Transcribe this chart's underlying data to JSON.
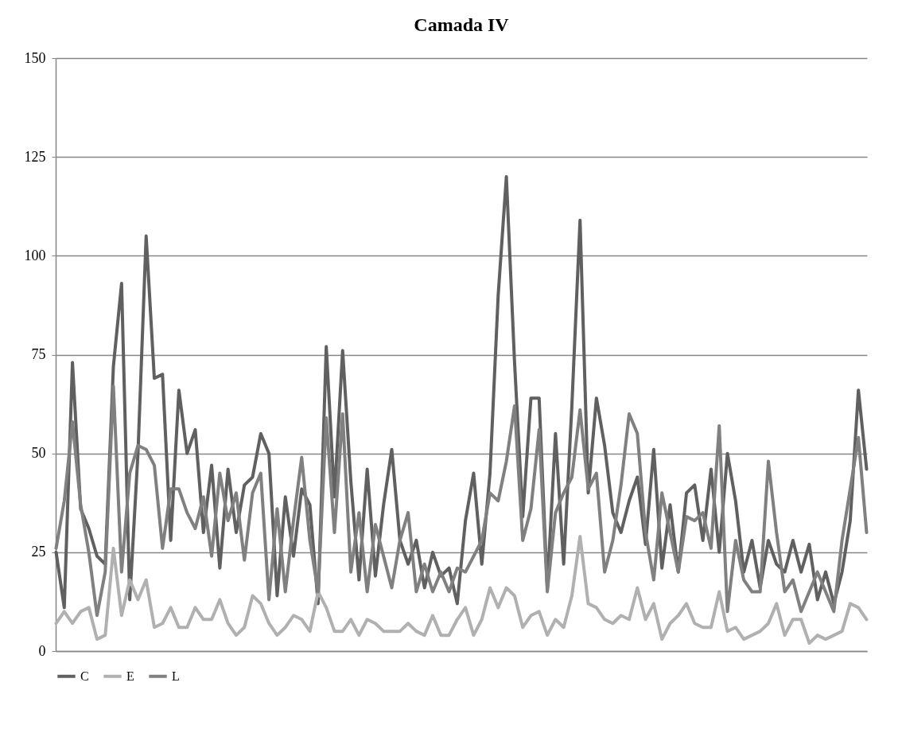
{
  "chart_data": {
    "type": "line",
    "title": "Camada IV",
    "categories": [
      null,
      null,
      null,
      null,
      null,
      null,
      null,
      null,
      null,
      null,
      null,
      null,
      null,
      null,
      null,
      null,
      null,
      null,
      null,
      null,
      null,
      null,
      null,
      null,
      null,
      null,
      null,
      null,
      null,
      null,
      null,
      null,
      null,
      null,
      null,
      null,
      null,
      null,
      null,
      null,
      null,
      null,
      null,
      null,
      null,
      null,
      null,
      null,
      null,
      null,
      null,
      null,
      null,
      null,
      null,
      null,
      null,
      null,
      null,
      null,
      null,
      null,
      null,
      null,
      null,
      null,
      null,
      null,
      null,
      null,
      null,
      null,
      null,
      null,
      null,
      null,
      null,
      null,
      null,
      null,
      null,
      null,
      null,
      null,
      null,
      null,
      null,
      null,
      null,
      null,
      null,
      null,
      null,
      null,
      null,
      null,
      null,
      null,
      null,
      null
    ],
    "series": [
      {
        "name": "C",
        "color": "#606060",
        "values": [
          25,
          11,
          73,
          36,
          31,
          24,
          22,
          72,
          93,
          13,
          50,
          105,
          69,
          70,
          28,
          66,
          50,
          56,
          30,
          47,
          21,
          46,
          30,
          42,
          44,
          55,
          50,
          14,
          39,
          24,
          41,
          37,
          12,
          77,
          39,
          76,
          43,
          18,
          46,
          19,
          37,
          51,
          28,
          22,
          28,
          16,
          25,
          19,
          21,
          12,
          33,
          45,
          22,
          45,
          90,
          120,
          73,
          34,
          64,
          64,
          16,
          55,
          22,
          62,
          109,
          40,
          64,
          52,
          35,
          30,
          38,
          44,
          27,
          51,
          21,
          37,
          20,
          40,
          42,
          28,
          46,
          25,
          50,
          38,
          20,
          28,
          16,
          28,
          22,
          20,
          28,
          20,
          27,
          13,
          20,
          12,
          20,
          33,
          66,
          46
        ]
      },
      {
        "name": "E",
        "color": "#b0b0b0",
        "values": [
          7,
          10,
          7,
          10,
          11,
          3,
          4,
          26,
          9,
          18,
          13,
          18,
          6,
          7,
          11,
          6,
          6,
          11,
          8,
          8,
          13,
          7,
          4,
          6,
          14,
          12,
          7,
          4,
          6,
          9,
          8,
          5,
          15,
          11,
          5,
          5,
          8,
          4,
          8,
          7,
          5,
          5,
          5,
          7,
          5,
          4,
          9,
          4,
          4,
          8,
          11,
          4,
          8,
          16,
          11,
          16,
          14,
          6,
          9,
          10,
          4,
          8,
          6,
          14,
          29,
          12,
          11,
          8,
          7,
          9,
          8,
          16,
          8,
          12,
          3,
          7,
          9,
          12,
          7,
          6,
          6,
          15,
          5,
          6,
          3,
          4,
          5,
          7,
          12,
          4,
          8,
          8,
          2,
          4,
          3,
          4,
          5,
          12,
          11,
          8
        ]
      },
      {
        "name": "L",
        "color": "#808080",
        "values": [
          26,
          38,
          58,
          37,
          25,
          9,
          20,
          67,
          20,
          45,
          52,
          51,
          47,
          26,
          41,
          41,
          35,
          31,
          39,
          24,
          45,
          33,
          40,
          23,
          40,
          45,
          13,
          36,
          15,
          33,
          49,
          28,
          15,
          59,
          30,
          60,
          20,
          35,
          15,
          32,
          24,
          16,
          28,
          35,
          15,
          22,
          15,
          20,
          15,
          21,
          20,
          24,
          28,
          40,
          38,
          48,
          62,
          28,
          36,
          56,
          15,
          35,
          40,
          44,
          61,
          41,
          45,
          20,
          28,
          42,
          60,
          55,
          30,
          18,
          40,
          30,
          20,
          34,
          33,
          35,
          26,
          57,
          10,
          28,
          18,
          15,
          15,
          48,
          30,
          15,
          18,
          10,
          15,
          20,
          15,
          10,
          28,
          41,
          54,
          30
        ]
      }
    ],
    "ylim": [
      0,
      150
    ],
    "yticks": [
      0,
      25,
      50,
      75,
      100,
      125,
      150
    ],
    "grid": "y",
    "legend": "bottom",
    "tick_labels": "y",
    "marker": "none",
    "line_style": "solid"
  }
}
